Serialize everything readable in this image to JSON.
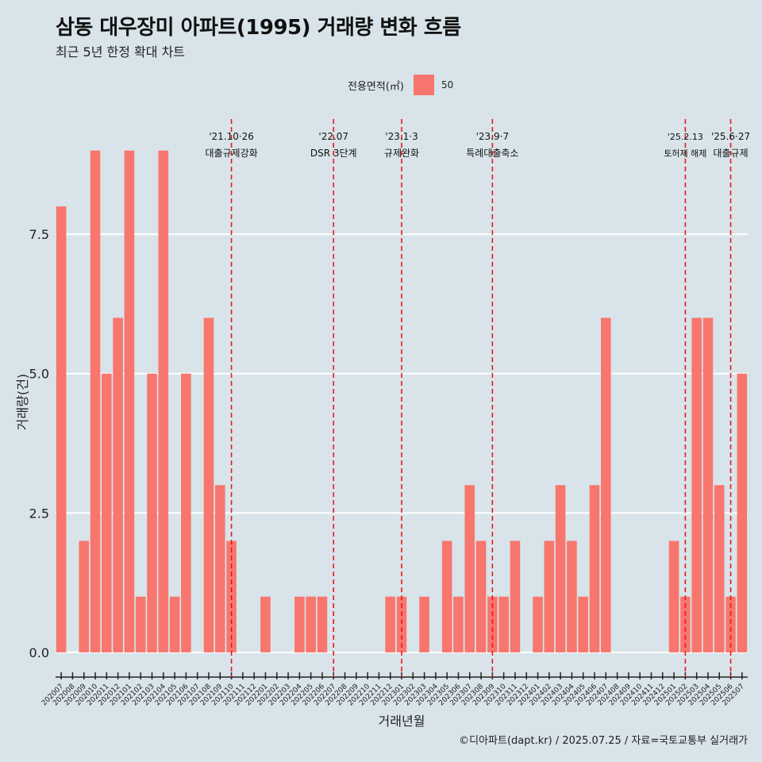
{
  "title": "삼동 대우장미 아파트(1995) 거래량 변화 흐름",
  "subtitle": "최근 5년 한정 확대 차트",
  "caption": "©디아파트(dapt.kr) / 2025.07.25 / 자료=국토교통부 실거래가",
  "colors": {
    "background": "#d8e4ea",
    "bar": "#f8766d",
    "gridline": "#ffffff",
    "event_line": "#e41a1c"
  },
  "legend": {
    "title": "전용면적(㎡)",
    "items": [
      {
        "label": "50",
        "color": "#f8766d"
      }
    ]
  },
  "chart_data": {
    "type": "bar",
    "xlabel": "거래년월",
    "ylabel": "거래량(건)",
    "ylim": [
      -0.3,
      9.85
    ],
    "yticks": [
      0,
      2.5,
      5,
      7.5
    ],
    "ytick_labels": [
      "0.0",
      "2.5",
      "5.0",
      "7.5"
    ],
    "grid": true,
    "legend_position": "top",
    "categories": [
      "202007",
      "202008",
      "202009",
      "202010",
      "202011",
      "202012",
      "202101",
      "202102",
      "202103",
      "202104",
      "202105",
      "202106",
      "202107",
      "202108",
      "202109",
      "202110",
      "202111",
      "202112",
      "202201",
      "202202",
      "202203",
      "202204",
      "202205",
      "202206",
      "202207",
      "202208",
      "202209",
      "202210",
      "202211",
      "202212",
      "202301",
      "202302",
      "202303",
      "202304",
      "202305",
      "202306",
      "202307",
      "202308",
      "202309",
      "202310",
      "202311",
      "202312",
      "202401",
      "202402",
      "202403",
      "202404",
      "202405",
      "202406",
      "202407",
      "202408",
      "202409",
      "202410",
      "202411",
      "202412",
      "202501",
      "202502",
      "202503",
      "202504",
      "202505",
      "202506",
      "202507"
    ],
    "series": [
      {
        "name": "50",
        "values": [
          8,
          0,
          2,
          9,
          5,
          6,
          9,
          1,
          5,
          9,
          1,
          5,
          0,
          6,
          3,
          2,
          0,
          0,
          1,
          0,
          0,
          1,
          1,
          1,
          0,
          0,
          0,
          0,
          0,
          1,
          1,
          0,
          1,
          0,
          2,
          1,
          3,
          2,
          1,
          1,
          2,
          0,
          1,
          2,
          3,
          2,
          1,
          3,
          6,
          0,
          0,
          0,
          0,
          0,
          2,
          1,
          6,
          6,
          3,
          1,
          5
        ]
      }
    ],
    "annotations": [
      {
        "x": "202110",
        "date": "'21.10·26",
        "label": "대출규제강화"
      },
      {
        "x": "202207",
        "date": "'22.07",
        "label": "DSR 3단계"
      },
      {
        "x": "202301",
        "date": "'23.1·3",
        "label": "규제완화"
      },
      {
        "x": "202309",
        "date": "'23.9·7",
        "label": "특례대출축소"
      },
      {
        "x": "202502",
        "date": "'25.2.13",
        "label": "토허제 해제"
      },
      {
        "x": "202506",
        "date": "'25.6·27",
        "label": "대출규제"
      }
    ]
  }
}
